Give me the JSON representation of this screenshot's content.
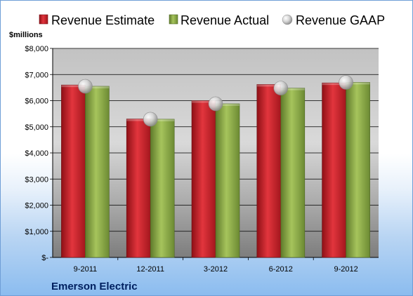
{
  "company": "Emerson Electric",
  "colors": {
    "estimate": "#d0212b",
    "actual": "#8fb04a",
    "gaap": "#c9c9c9"
  },
  "chart_data": {
    "type": "bar",
    "title": "",
    "xlabel": "",
    "ylabel": "$millions",
    "categories": [
      "9-2011",
      "12-2011",
      "3-2012",
      "6-2012",
      "9-2012"
    ],
    "series": [
      {
        "name": "Revenue Estimate",
        "type": "bar",
        "values": [
          6600,
          5300,
          6000,
          6620,
          6680
        ]
      },
      {
        "name": "Revenue Actual",
        "type": "bar",
        "values": [
          6550,
          5290,
          5880,
          6480,
          6700
        ]
      },
      {
        "name": "Revenue GAAP",
        "type": "scatter",
        "values": [
          6550,
          5290,
          5880,
          6480,
          6700
        ]
      }
    ],
    "ylim": [
      0,
      8000
    ],
    "yticks": [
      0,
      1000,
      2000,
      3000,
      4000,
      5000,
      6000,
      7000,
      8000
    ],
    "ytick_labels": [
      "$-",
      "$1,000",
      "$2,000",
      "$3,000",
      "$4,000",
      "$5,000",
      "$6,000",
      "$7,000",
      "$8,000"
    ],
    "grid": true,
    "legend_position": "top"
  }
}
